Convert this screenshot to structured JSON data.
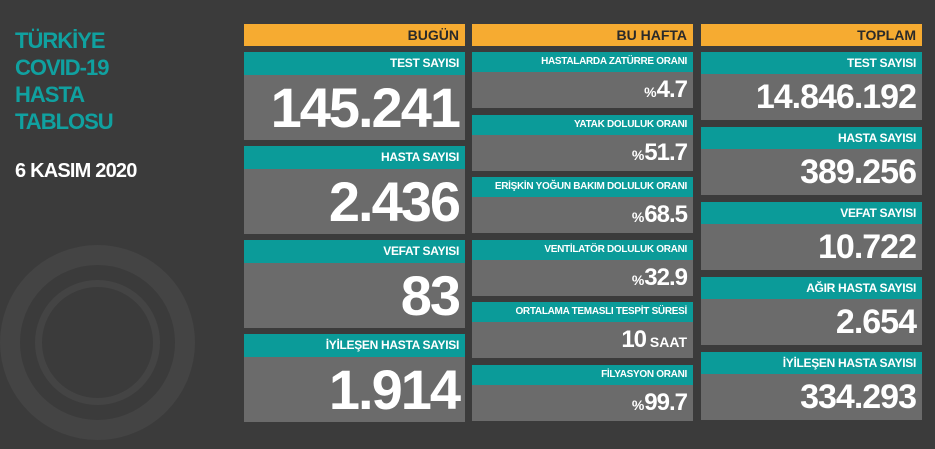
{
  "title_lines": [
    "TÜRKİYE",
    "COVID-19",
    "HASTA",
    "TABLOSU"
  ],
  "date": "6 KASIM 2020",
  "colors": {
    "accent_orange": "#f6ab31",
    "teal": "#0b9b99",
    "card": "#6b6b6b",
    "background": "#3b3b3b"
  },
  "today": {
    "header": "BUGÜN",
    "items": [
      {
        "label": "TEST SAYISI",
        "value": "145.241"
      },
      {
        "label": "HASTA SAYISI",
        "value": "2.436"
      },
      {
        "label": "VEFAT SAYISI",
        "value": "83"
      },
      {
        "label": "İYİLEŞEN HASTA SAYISI",
        "value": "1.914"
      }
    ]
  },
  "week": {
    "header": "BU HAFTA",
    "items": [
      {
        "label": "HASTALARDA ZATÜRRE ORANI",
        "prefix": "%",
        "value": "4.7",
        "suffix": ""
      },
      {
        "label": "YATAK DOLULUK ORANI",
        "prefix": "%",
        "value": "51.7",
        "suffix": ""
      },
      {
        "label": "ERİŞKİN YOĞUN BAKIM DOLULUK ORANI",
        "prefix": "%",
        "value": "68.5",
        "suffix": ""
      },
      {
        "label": "VENTİLATÖR DOLULUK ORANI",
        "prefix": "%",
        "value": "32.9",
        "suffix": ""
      },
      {
        "label": "ORTALAMA TEMASLI TESPİT SÜRESİ",
        "prefix": "",
        "value": "10",
        "suffix": " SAAT"
      },
      {
        "label": "FİLYASYON ORANI",
        "prefix": "%",
        "value": "99.7",
        "suffix": ""
      }
    ]
  },
  "total": {
    "header": "TOPLAM",
    "items": [
      {
        "label": "TEST SAYISI",
        "value": "14.846.192"
      },
      {
        "label": "HASTA SAYISI",
        "value": "389.256"
      },
      {
        "label": "VEFAT SAYISI",
        "value": "10.722"
      },
      {
        "label": "AĞIR HASTA SAYISI",
        "value": "2.654"
      },
      {
        "label": "İYİLEŞEN HASTA SAYISI",
        "value": "334.293"
      }
    ]
  }
}
